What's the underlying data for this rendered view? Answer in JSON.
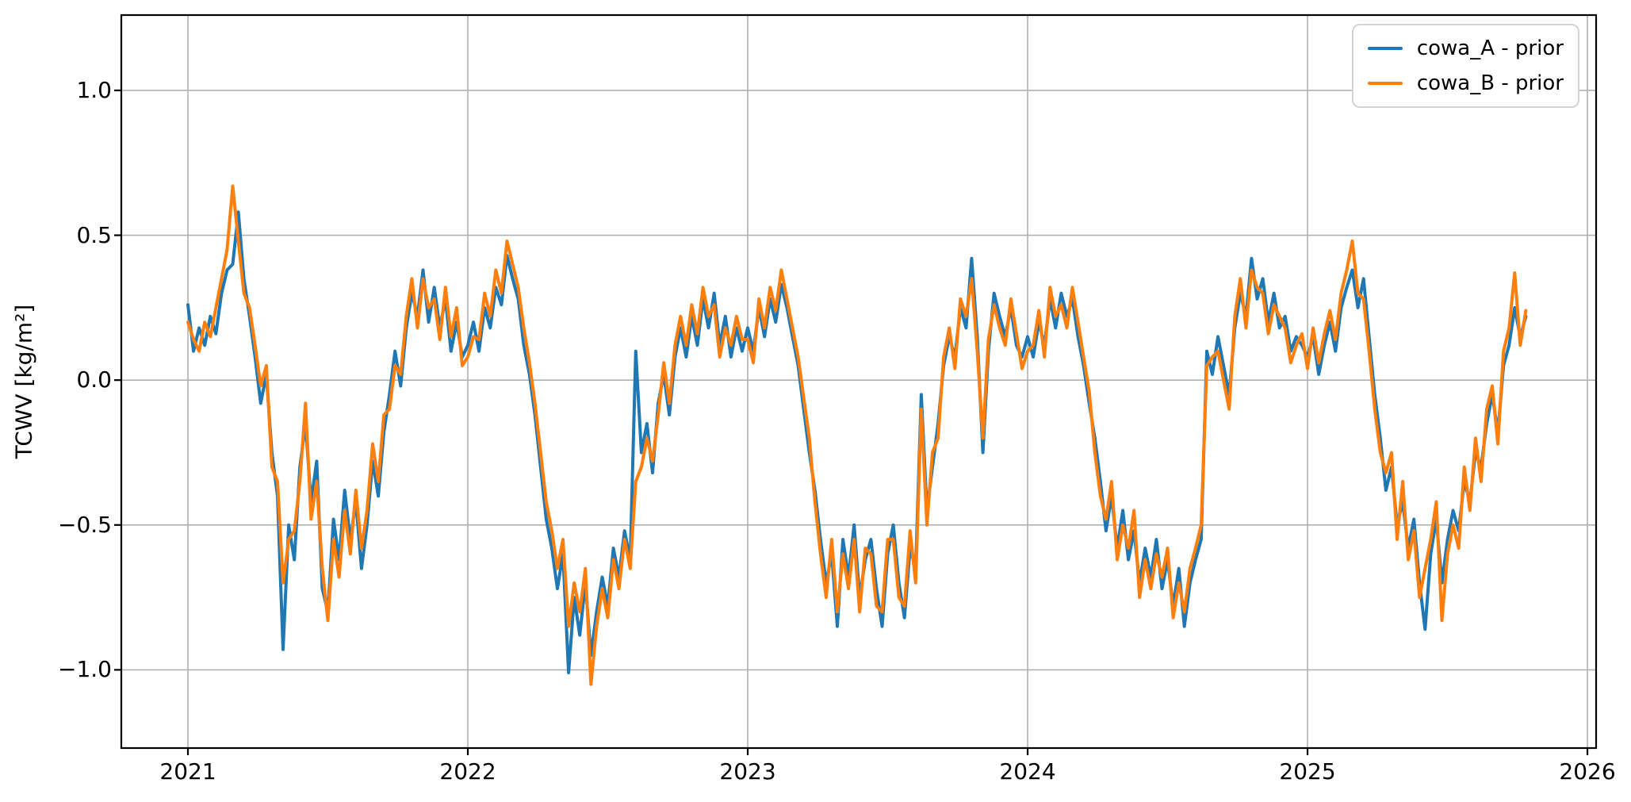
{
  "figure": {
    "background": "#ffffff",
    "ylabel": "TCWV [kg/m²]",
    "x_tick_labels": [
      "2021",
      "2022",
      "2023",
      "2024",
      "2025",
      "2026"
    ],
    "y_tick_labels": [
      "1.0",
      "0.5",
      "0.0",
      "−0.5",
      "−1.0"
    ]
  },
  "chart_data": {
    "type": "line",
    "title": "",
    "xlabel": "",
    "ylabel": "TCWV [kg/m²]",
    "xlim": [
      2020.762,
      2026.031
    ],
    "ylim": [
      -1.27,
      1.26
    ],
    "x_ticks": [
      2021,
      2022,
      2023,
      2024,
      2025,
      2026
    ],
    "y_ticks": [
      1.0,
      0.5,
      0.0,
      -0.5,
      -1.0
    ],
    "grid": true,
    "grid_color": "#b0b0b0",
    "legend_position": "upper right",
    "x_start": 2021.0,
    "x_step": 0.02,
    "series": [
      {
        "name": "cowa_A - prior",
        "color": "#1f77b4",
        "values": [
          0.26,
          0.1,
          0.18,
          0.12,
          0.22,
          0.16,
          0.3,
          0.38,
          0.4,
          0.58,
          0.35,
          0.22,
          0.08,
          -0.08,
          0.02,
          -0.25,
          -0.4,
          -0.93,
          -0.5,
          -0.62,
          -0.3,
          -0.15,
          -0.42,
          -0.28,
          -0.72,
          -0.8,
          -0.48,
          -0.62,
          -0.38,
          -0.55,
          -0.42,
          -0.65,
          -0.5,
          -0.28,
          -0.4,
          -0.18,
          -0.05,
          0.1,
          -0.02,
          0.18,
          0.3,
          0.22,
          0.38,
          0.2,
          0.32,
          0.18,
          0.28,
          0.1,
          0.2,
          0.08,
          0.12,
          0.2,
          0.1,
          0.25,
          0.18,
          0.32,
          0.26,
          0.43,
          0.35,
          0.28,
          0.12,
          0.02,
          -0.12,
          -0.3,
          -0.48,
          -0.58,
          -0.72,
          -0.6,
          -1.01,
          -0.75,
          -0.88,
          -0.7,
          -0.95,
          -0.8,
          -0.68,
          -0.78,
          -0.58,
          -0.68,
          -0.52,
          -0.62,
          0.1,
          -0.25,
          -0.15,
          -0.32,
          -0.08,
          0.02,
          -0.12,
          0.08,
          0.18,
          0.08,
          0.22,
          0.12,
          0.28,
          0.18,
          0.3,
          0.12,
          0.22,
          0.08,
          0.18,
          0.1,
          0.18,
          0.1,
          0.25,
          0.15,
          0.28,
          0.2,
          0.33,
          0.25,
          0.15,
          0.05,
          -0.1,
          -0.25,
          -0.38,
          -0.55,
          -0.7,
          -0.6,
          -0.85,
          -0.55,
          -0.68,
          -0.5,
          -0.75,
          -0.62,
          -0.55,
          -0.72,
          -0.85,
          -0.6,
          -0.5,
          -0.7,
          -0.82,
          -0.58,
          -0.65,
          -0.05,
          -0.45,
          -0.3,
          -0.15,
          0.05,
          0.15,
          0.08,
          0.25,
          0.18,
          0.42,
          0.15,
          -0.25,
          0.1,
          0.3,
          0.22,
          0.15,
          0.25,
          0.12,
          0.08,
          0.15,
          0.08,
          0.2,
          0.12,
          0.28,
          0.18,
          0.3,
          0.22,
          0.28,
          0.15,
          0.05,
          -0.08,
          -0.2,
          -0.35,
          -0.52,
          -0.4,
          -0.58,
          -0.45,
          -0.62,
          -0.52,
          -0.7,
          -0.58,
          -0.68,
          -0.55,
          -0.72,
          -0.62,
          -0.78,
          -0.65,
          -0.85,
          -0.7,
          -0.62,
          -0.55,
          0.1,
          0.02,
          0.15,
          0.05,
          -0.05,
          0.18,
          0.3,
          0.22,
          0.42,
          0.28,
          0.35,
          0.2,
          0.3,
          0.18,
          0.22,
          0.1,
          0.15,
          0.12,
          0.08,
          0.15,
          0.02,
          0.12,
          0.2,
          0.1,
          0.25,
          0.32,
          0.38,
          0.25,
          0.35,
          0.15,
          -0.05,
          -0.2,
          -0.38,
          -0.3,
          -0.5,
          -0.42,
          -0.58,
          -0.48,
          -0.7,
          -0.86,
          -0.6,
          -0.48,
          -0.7,
          -0.55,
          -0.45,
          -0.52,
          -0.35,
          -0.42,
          -0.25,
          -0.3,
          -0.15,
          -0.05,
          -0.18,
          0.05,
          0.12,
          0.25,
          0.15,
          0.22
        ]
      },
      {
        "name": "cowa_B - prior",
        "color": "#ff7f0e",
        "values": [
          0.2,
          0.14,
          0.1,
          0.2,
          0.15,
          0.25,
          0.35,
          0.45,
          0.67,
          0.48,
          0.3,
          0.25,
          0.12,
          -0.02,
          0.05,
          -0.3,
          -0.35,
          -0.7,
          -0.55,
          -0.52,
          -0.35,
          -0.08,
          -0.48,
          -0.35,
          -0.65,
          -0.83,
          -0.55,
          -0.68,
          -0.45,
          -0.6,
          -0.38,
          -0.58,
          -0.45,
          -0.22,
          -0.35,
          -0.12,
          -0.1,
          0.05,
          0.02,
          0.22,
          0.35,
          0.18,
          0.35,
          0.25,
          0.28,
          0.14,
          0.32,
          0.15,
          0.25,
          0.05,
          0.08,
          0.15,
          0.14,
          0.3,
          0.22,
          0.38,
          0.3,
          0.48,
          0.4,
          0.32,
          0.18,
          0.06,
          -0.08,
          -0.25,
          -0.42,
          -0.52,
          -0.65,
          -0.55,
          -0.85,
          -0.7,
          -0.8,
          -0.65,
          -1.05,
          -0.85,
          -0.72,
          -0.82,
          -0.62,
          -0.72,
          -0.55,
          -0.65,
          -0.35,
          -0.3,
          -0.2,
          -0.28,
          -0.12,
          0.06,
          -0.08,
          0.12,
          0.22,
          0.12,
          0.26,
          0.16,
          0.32,
          0.22,
          0.26,
          0.08,
          0.18,
          0.12,
          0.22,
          0.14,
          0.14,
          0.06,
          0.28,
          0.18,
          0.32,
          0.24,
          0.38,
          0.28,
          0.18,
          0.08,
          -0.06,
          -0.2,
          -0.42,
          -0.6,
          -0.75,
          -0.55,
          -0.8,
          -0.6,
          -0.72,
          -0.55,
          -0.8,
          -0.58,
          -0.6,
          -0.78,
          -0.8,
          -0.55,
          -0.55,
          -0.75,
          -0.78,
          -0.52,
          -0.7,
          -0.1,
          -0.5,
          -0.25,
          -0.2,
          0.08,
          0.18,
          0.04,
          0.28,
          0.22,
          0.35,
          0.1,
          -0.2,
          0.14,
          0.26,
          0.18,
          0.12,
          0.28,
          0.16,
          0.04,
          0.1,
          0.12,
          0.24,
          0.08,
          0.32,
          0.22,
          0.26,
          0.18,
          0.32,
          0.2,
          0.08,
          -0.04,
          -0.25,
          -0.4,
          -0.48,
          -0.35,
          -0.62,
          -0.5,
          -0.58,
          -0.45,
          -0.75,
          -0.62,
          -0.72,
          -0.6,
          -0.68,
          -0.58,
          -0.82,
          -0.7,
          -0.8,
          -0.65,
          -0.58,
          -0.5,
          0.05,
          0.08,
          0.1,
          0.0,
          -0.1,
          0.22,
          0.35,
          0.18,
          0.38,
          0.32,
          0.3,
          0.16,
          0.26,
          0.22,
          0.18,
          0.06,
          0.12,
          0.16,
          0.04,
          0.18,
          0.06,
          0.16,
          0.24,
          0.14,
          0.3,
          0.38,
          0.48,
          0.3,
          0.28,
          0.1,
          -0.1,
          -0.25,
          -0.32,
          -0.25,
          -0.55,
          -0.35,
          -0.62,
          -0.52,
          -0.75,
          -0.65,
          -0.55,
          -0.42,
          -0.83,
          -0.6,
          -0.5,
          -0.58,
          -0.3,
          -0.45,
          -0.2,
          -0.35,
          -0.1,
          -0.02,
          -0.22,
          0.1,
          0.18,
          0.37,
          0.12,
          0.24
        ]
      }
    ]
  }
}
